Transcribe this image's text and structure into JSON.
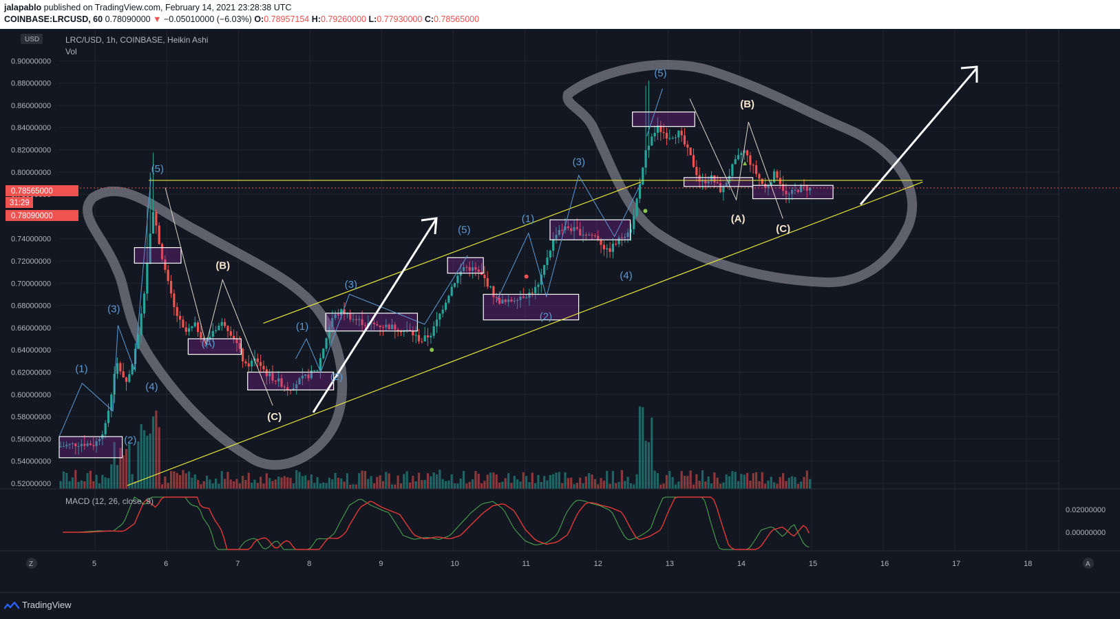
{
  "header": {
    "author": "jalapablo",
    "published": "published on TradingView.com, February 14, 2021 23:28:38 UTC",
    "symbol": "COINBASE:LRCUSD, 60",
    "last_price": "0.78090000",
    "change": "−0.05010000 (−6.03%)",
    "open_label": "O:",
    "open": "0.78957154",
    "high_label": "H:",
    "high": "0.79260000",
    "low_label": "L:",
    "low": "0.77930000",
    "close_label": "C:",
    "close": "0.78565000"
  },
  "legend": {
    "title": "LRC/USD, 1h, COINBASE, Heikin Ashi",
    "volume": "Vol",
    "macd": "MACD (12, 26, close, 9)",
    "currency_badge": "USD"
  },
  "price_tags": {
    "close": "0.78565000",
    "countdown": "31:29",
    "last": "0.78090000"
  },
  "footer": {
    "brand": "TradingView",
    "z_button": "Z",
    "a_button": "A"
  },
  "colors": {
    "background": "#131722",
    "up": "#26a69a",
    "down": "#ef5350",
    "wave_blue": "#5b9bd5",
    "trend": "#e8e838",
    "highlight": "#d9534f"
  },
  "chart_data": {
    "type": "candlestick",
    "title": "LRC/USD, 1h, COINBASE, Heikin Ashi",
    "x_ticks": [
      "5",
      "6",
      "7",
      "8",
      "9",
      "10",
      "11",
      "12",
      "13",
      "14",
      "15",
      "16",
      "17",
      "18"
    ],
    "y_ticks": [
      "0.52000000",
      "0.54000000",
      "0.56000000",
      "0.58000000",
      "0.60000000",
      "0.62000000",
      "0.64000000",
      "0.66000000",
      "0.68000000",
      "0.70000000",
      "0.72000000",
      "0.74000000",
      "0.76000000",
      "0.78000000",
      "0.80000000",
      "0.82000000",
      "0.84000000",
      "0.86000000",
      "0.88000000",
      "0.90000000"
    ],
    "y_range": [
      0.515,
      0.925
    ],
    "x_range": [
      4.5,
      18.45
    ],
    "macd_ticks": [
      "0.02000000",
      "0.00000000"
    ],
    "price_path": [
      [
        4.5,
        0.553
      ],
      [
        4.8,
        0.556
      ],
      [
        5.0,
        0.555
      ],
      [
        5.15,
        0.572
      ],
      [
        5.3,
        0.628
      ],
      [
        5.45,
        0.61
      ],
      [
        5.6,
        0.65
      ],
      [
        5.7,
        0.7
      ],
      [
        5.8,
        0.768
      ],
      [
        5.9,
        0.735
      ],
      [
        6.0,
        0.705
      ],
      [
        6.1,
        0.678
      ],
      [
        6.25,
        0.655
      ],
      [
        6.4,
        0.662
      ],
      [
        6.55,
        0.646
      ],
      [
        6.65,
        0.658
      ],
      [
        6.8,
        0.665
      ],
      [
        6.95,
        0.65
      ],
      [
        7.1,
        0.625
      ],
      [
        7.25,
        0.632
      ],
      [
        7.4,
        0.618
      ],
      [
        7.55,
        0.612
      ],
      [
        7.7,
        0.605
      ],
      [
        7.85,
        0.612
      ],
      [
        8.0,
        0.618
      ],
      [
        8.1,
        0.622
      ],
      [
        8.2,
        0.645
      ],
      [
        8.3,
        0.668
      ],
      [
        8.45,
        0.675
      ],
      [
        8.6,
        0.668
      ],
      [
        8.8,
        0.663
      ],
      [
        9.0,
        0.662
      ],
      [
        9.2,
        0.66
      ],
      [
        9.4,
        0.656
      ],
      [
        9.55,
        0.648
      ],
      [
        9.7,
        0.655
      ],
      [
        9.85,
        0.678
      ],
      [
        10.0,
        0.7
      ],
      [
        10.15,
        0.715
      ],
      [
        10.3,
        0.712
      ],
      [
        10.45,
        0.703
      ],
      [
        10.6,
        0.685
      ],
      [
        10.75,
        0.682
      ],
      [
        10.9,
        0.688
      ],
      [
        11.05,
        0.69
      ],
      [
        11.2,
        0.698
      ],
      [
        11.3,
        0.722
      ],
      [
        11.45,
        0.748
      ],
      [
        11.6,
        0.75
      ],
      [
        11.8,
        0.745
      ],
      [
        12.0,
        0.742
      ],
      [
        12.15,
        0.728
      ],
      [
        12.3,
        0.738
      ],
      [
        12.5,
        0.752
      ],
      [
        12.6,
        0.79
      ],
      [
        12.7,
        0.822
      ],
      [
        12.85,
        0.84
      ],
      [
        13.0,
        0.832
      ],
      [
        13.15,
        0.835
      ],
      [
        13.3,
        0.815
      ],
      [
        13.45,
        0.79
      ],
      [
        13.6,
        0.795
      ],
      [
        13.75,
        0.782
      ],
      [
        13.9,
        0.805
      ],
      [
        14.05,
        0.82
      ],
      [
        14.2,
        0.802
      ],
      [
        14.35,
        0.785
      ],
      [
        14.5,
        0.8
      ],
      [
        14.65,
        0.778
      ],
      [
        14.75,
        0.782
      ],
      [
        14.85,
        0.786
      ],
      [
        15.0,
        0.785
      ]
    ],
    "macd_line_desc": "MACD line (green) and signal line (red) oscillating around zero",
    "annotations": {
      "blue_waves": [
        "(1)",
        "(3)",
        "(2)",
        "(4)",
        "(5)",
        "(A)",
        "(1)",
        "(2)",
        "(3)",
        "(5)",
        "(1)",
        "(2)",
        "(3)",
        "(4)",
        "(5)"
      ],
      "white_waves": [
        "(B)",
        "(C)",
        "(B)",
        "(A)",
        "(C)"
      ]
    },
    "trend_lines": [
      {
        "from": [
          5.45,
          0.518
        ],
        "to": [
          16.55,
          0.791
        ]
      },
      {
        "from": [
          7.35,
          0.664
        ],
        "to": [
          12.62,
          0.791
        ]
      },
      {
        "from": [
          5.75,
          0.7925
        ],
        "to": [
          16.55,
          0.7925
        ]
      }
    ]
  }
}
